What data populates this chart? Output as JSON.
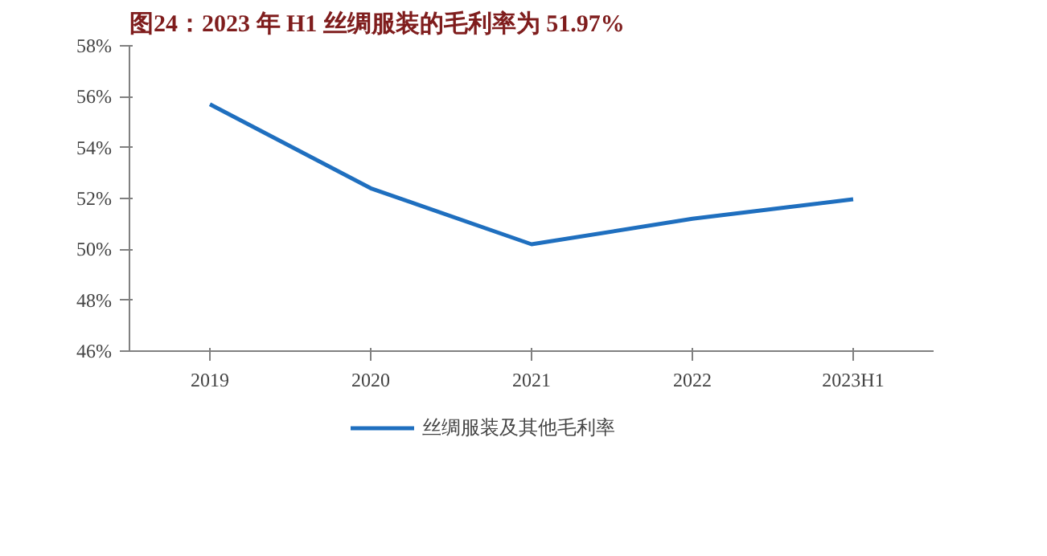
{
  "chart_data": {
    "type": "line",
    "title": "图24：2023 年 H1 丝绸服装的毛利率为 51.97%",
    "categories": [
      "2019",
      "2020",
      "2021",
      "2022",
      "2023H1"
    ],
    "series": [
      {
        "name": "丝绸服装及其他毛利率",
        "color": "#1f6fbf",
        "values": [
          55.7,
          52.4,
          50.2,
          51.2,
          51.97
        ]
      }
    ],
    "ylim": [
      46,
      58
    ],
    "yticks": [
      {
        "value": 46,
        "label": "46%"
      },
      {
        "value": 48,
        "label": "48%"
      },
      {
        "value": 50,
        "label": "50%"
      },
      {
        "value": 52,
        "label": "52%"
      },
      {
        "value": 54,
        "label": "54%"
      },
      {
        "value": 56,
        "label": "56%"
      },
      {
        "value": 58,
        "label": "58%"
      }
    ],
    "grid": false,
    "legend": "bottom",
    "marker": "none",
    "line_style": "solid"
  }
}
